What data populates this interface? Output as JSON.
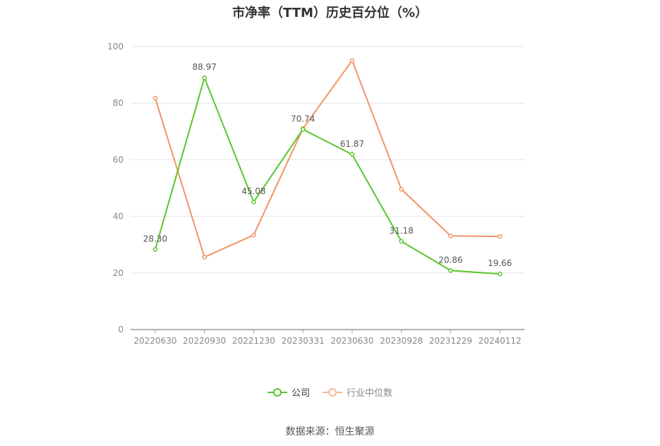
{
  "chart_data": {
    "type": "line",
    "title": "市净率（TTM）历史百分位（%）",
    "categories": [
      "20220630",
      "20220930",
      "20221230",
      "20230331",
      "20230630",
      "20230928",
      "20231229",
      "20240112"
    ],
    "series": [
      {
        "name": "公司",
        "color": "#5ac62e",
        "values": [
          28.3,
          88.97,
          45.08,
          70.74,
          61.87,
          31.18,
          20.86,
          19.66
        ],
        "labels": [
          "28.30",
          "88.97",
          "45.08",
          "70.74",
          "61.87",
          "31.18",
          "20.86",
          "19.66"
        ]
      },
      {
        "name": "行业中位数",
        "color": "#f19566",
        "values": [
          81.8,
          25.6,
          33.4,
          71.0,
          95.1,
          49.6,
          33.1,
          32.9
        ]
      }
    ],
    "ylim": [
      0,
      100
    ],
    "yticks": [
      0,
      20,
      40,
      60,
      80,
      100
    ],
    "grid": true,
    "legend": "bottom-center"
  },
  "source": "数据来源：恒生聚源"
}
